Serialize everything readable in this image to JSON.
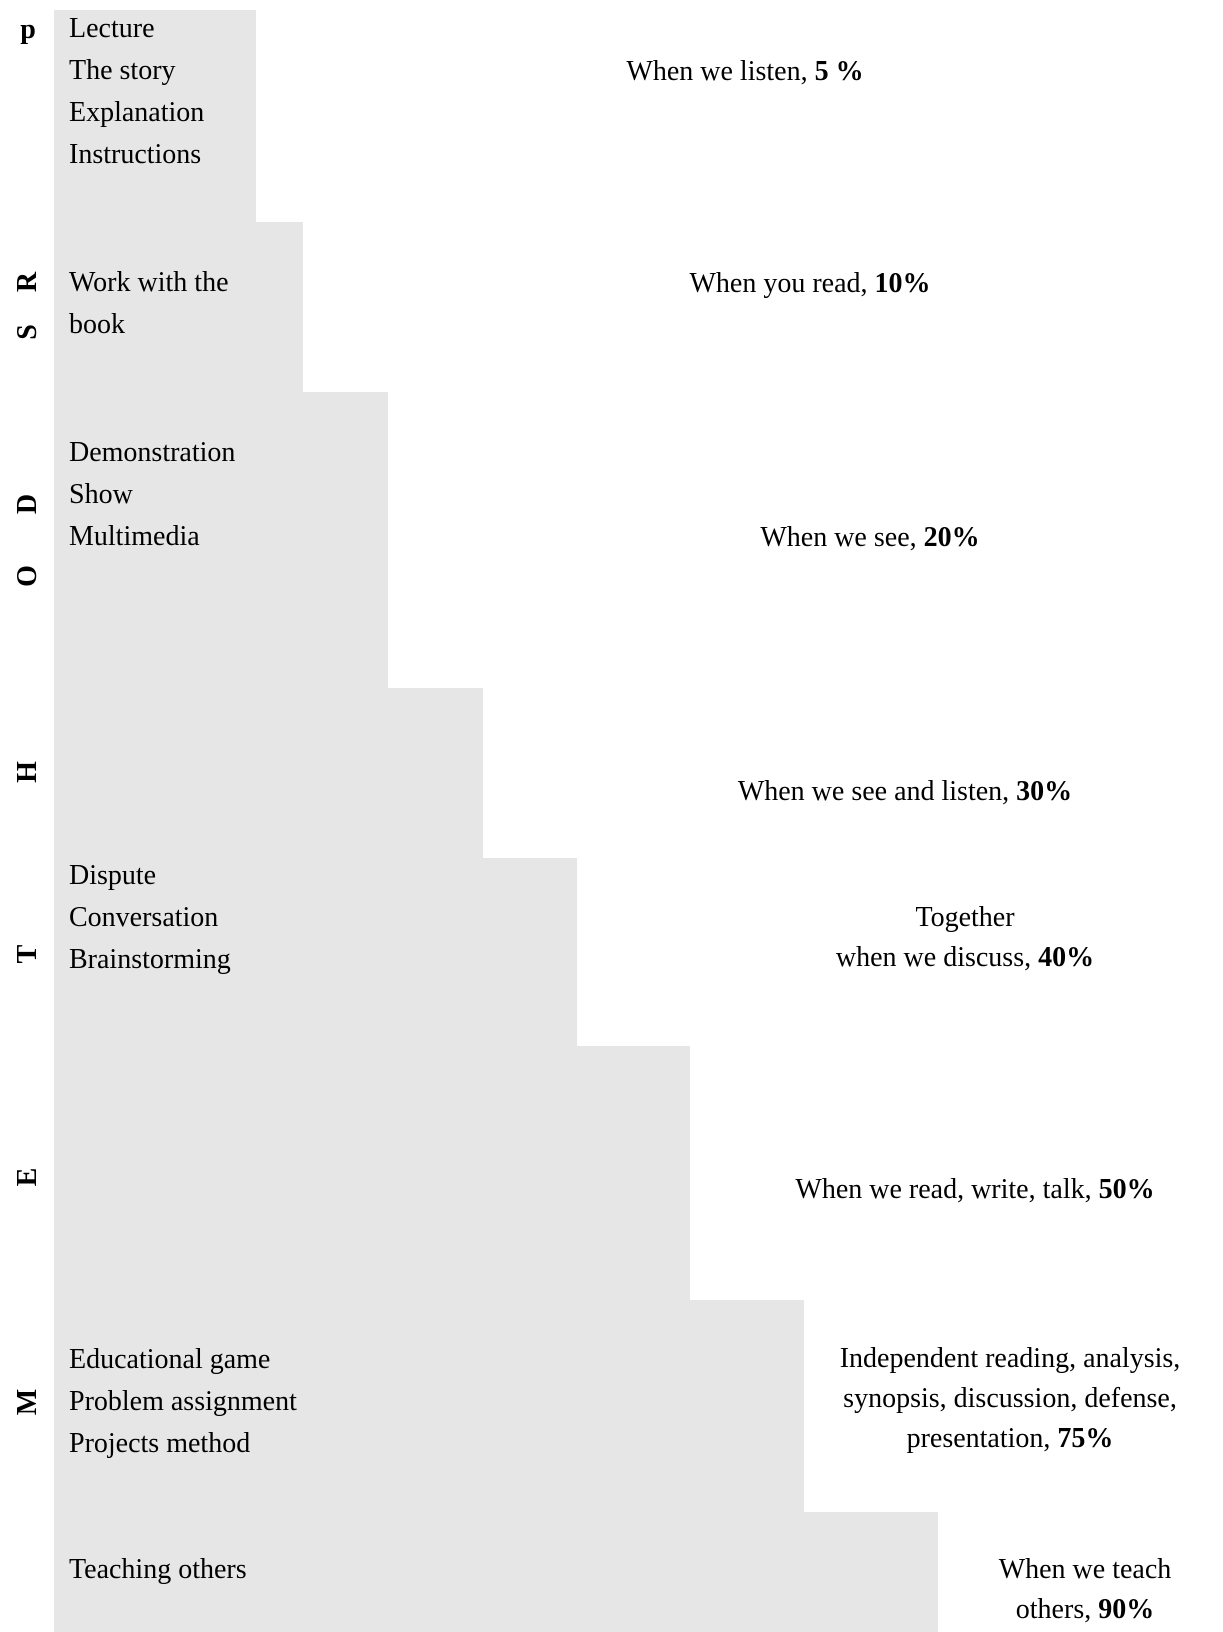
{
  "side_letters": [
    "p",
    "R",
    "S",
    "D",
    "O",
    "H",
    "T",
    "E",
    "M"
  ],
  "rows": [
    {
      "methods": [
        "Lecture",
        "The story",
        "Explanation",
        "Instructions"
      ],
      "outcome_lines": [
        {
          "text": "When we listen, ",
          "bold": "5 %"
        }
      ]
    },
    {
      "methods": [
        "Work with the",
        "book"
      ],
      "outcome_lines": [
        {
          "text": "When you read, ",
          "bold": "10%"
        }
      ]
    },
    {
      "methods": [
        "Demonstration",
        "Show",
        "Multimedia"
      ],
      "outcome_lines": [
        {
          "text": "When we see, ",
          "bold": "20%"
        }
      ]
    },
    {
      "methods": [],
      "outcome_lines": [
        {
          "text": "When we see and listen, ",
          "bold": "30%"
        }
      ]
    },
    {
      "methods": [
        "Dispute",
        "Conversation",
        "Brainstorming"
      ],
      "outcome_lines": [
        {
          "text": "Together",
          "bold": ""
        },
        {
          "text": "when we discuss, ",
          "bold": "40%"
        }
      ]
    },
    {
      "methods": [],
      "outcome_lines": [
        {
          "text": "When we read, write, talk, ",
          "bold": "50%"
        }
      ]
    },
    {
      "methods": [
        "Educational game",
        "Problem assignment",
        "Projects method"
      ],
      "outcome_lines": [
        {
          "text": "Independent reading, analysis,",
          "bold": ""
        },
        {
          "text": "synopsis, discussion, defense,",
          "bold": ""
        },
        {
          "text": "presentation, ",
          "bold": "75%"
        }
      ]
    },
    {
      "methods": [
        "Teaching others"
      ],
      "outcome_lines": [
        {
          "text": "When we teach",
          "bold": ""
        },
        {
          "text": "others, ",
          "bold": "90%"
        }
      ]
    }
  ]
}
